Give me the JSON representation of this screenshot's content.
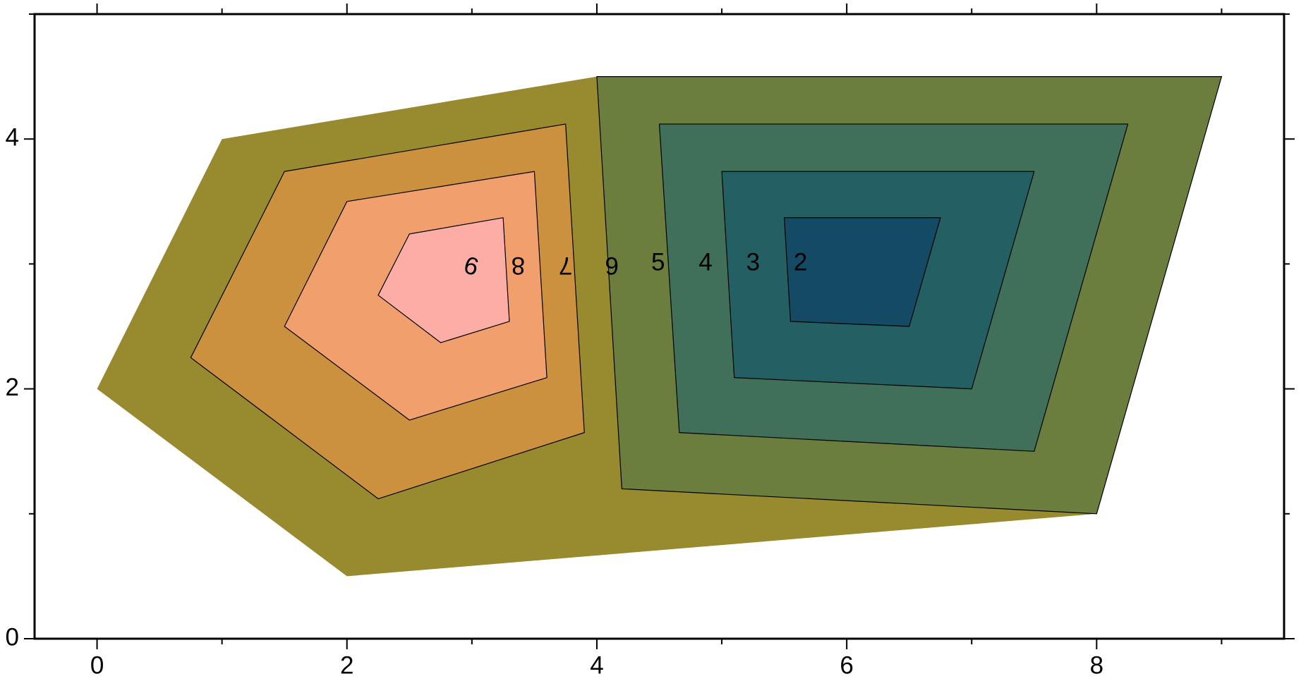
{
  "chart_data": {
    "type": "contour",
    "xlim": [
      -0.5,
      9.5
    ],
    "ylim": [
      0,
      5
    ],
    "xticks": [
      0,
      2,
      4,
      6,
      8
    ],
    "yticks": [
      0,
      2,
      4
    ],
    "xminorticks": [
      1,
      3,
      5,
      7,
      9
    ],
    "yminorticks": [
      1,
      3,
      5
    ],
    "regions": [
      {
        "color": "#988a2e",
        "stroke": false,
        "x": [
          0,
          1,
          4,
          9,
          8,
          2
        ],
        "y": [
          2,
          4,
          4.5,
          4.5,
          1,
          0.5
        ]
      },
      {
        "color": "#cc913f",
        "stroke": true,
        "x": [
          1.5,
          3.75,
          3.9,
          2.25,
          0.75
        ],
        "y": [
          3.74,
          4.12,
          1.65,
          1.12,
          2.25
        ]
      },
      {
        "color": "#f19f6d",
        "stroke": true,
        "x": [
          2,
          3.5,
          3.6,
          2.5,
          1.5
        ],
        "y": [
          3.5,
          3.74,
          2.09,
          1.75,
          2.5
        ]
      },
      {
        "color": "#fcaea6",
        "stroke": true,
        "x": [
          2.5,
          3.25,
          3.3,
          2.75,
          2.25
        ],
        "y": [
          3.24,
          3.37,
          2.54,
          2.37,
          2.75
        ]
      },
      {
        "color": "#6b7e3e",
        "stroke": true,
        "x": [
          4,
          9,
          8,
          4.2
        ],
        "y": [
          4.5,
          4.5,
          1,
          1.2
        ]
      },
      {
        "color": "#41705a",
        "stroke": true,
        "x": [
          4.5,
          8.25,
          7.5,
          4.66
        ],
        "y": [
          4.12,
          4.12,
          1.5,
          1.65
        ]
      },
      {
        "color": "#245f63",
        "stroke": true,
        "x": [
          5,
          7.5,
          7,
          5.1
        ],
        "y": [
          3.74,
          3.74,
          2,
          2.09
        ]
      },
      {
        "color": "#144a64",
        "stroke": true,
        "x": [
          5.5,
          6.75,
          6.5,
          5.55
        ],
        "y": [
          3.37,
          3.37,
          2.5,
          2.54
        ]
      }
    ],
    "contour_labels": {
      "values": [
        9,
        8,
        7,
        6,
        5,
        4,
        3,
        2
      ],
      "x": [
        3.0,
        3.37,
        3.75,
        4.12,
        4.49,
        4.87,
        5.25,
        5.63
      ],
      "y": [
        3,
        3,
        3,
        3,
        3,
        3,
        3,
        3
      ],
      "rotation": [
        195,
        180,
        180,
        180,
        0,
        0,
        0,
        0
      ]
    }
  }
}
